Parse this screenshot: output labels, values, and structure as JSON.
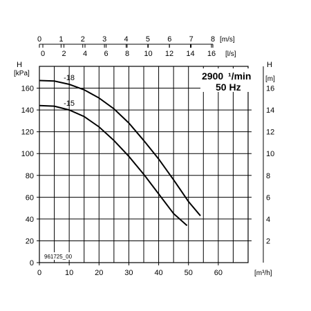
{
  "chart_data": {
    "type": "line",
    "title": "",
    "annotations": {
      "speed_number": "2900",
      "speed_unit": "¹/min",
      "frequency": "50 Hz",
      "drawing_id": "961725_00"
    },
    "axes": {
      "x_bottom": {
        "unit": "[m³/h]",
        "ticks": [
          "0",
          "10",
          "20",
          "30",
          "40",
          "50",
          "60"
        ],
        "range": [
          0,
          70
        ]
      },
      "x_top_velocity": {
        "unit": "[m/s]",
        "ticks": [
          "0",
          "1",
          "2",
          "3",
          "4",
          "5",
          "6",
          "7",
          "8"
        ]
      },
      "x_top_flow": {
        "unit": "[l/s]",
        "ticks": [
          "0",
          "2",
          "4",
          "6",
          "8",
          "10",
          "12",
          "14",
          "16"
        ]
      },
      "y_left": {
        "symbol": "H",
        "unit": "[kPa]",
        "ticks": [
          "0",
          "20",
          "40",
          "60",
          "80",
          "100",
          "120",
          "140",
          "160"
        ],
        "range": [
          0,
          180
        ]
      },
      "y_right": {
        "symbol": "H",
        "unit": "[m]",
        "ticks": [
          "2",
          "4",
          "6",
          "8",
          "10",
          "12",
          "14",
          "16"
        ]
      }
    },
    "grid": true,
    "series": [
      {
        "name": "-18",
        "x": [
          0,
          5,
          10,
          15,
          20,
          25,
          30,
          35,
          40,
          45,
          50,
          54
        ],
        "y": [
          167,
          166.5,
          163.5,
          158.5,
          151,
          141,
          128,
          112,
          95,
          76,
          56,
          43
        ]
      },
      {
        "name": "-15",
        "x": [
          0,
          5,
          10,
          15,
          20,
          25,
          30,
          35,
          40,
          45,
          49.5
        ],
        "y": [
          144,
          143.5,
          140,
          134,
          124.5,
          112,
          97.5,
          81,
          63,
          45,
          34
        ]
      }
    ]
  }
}
